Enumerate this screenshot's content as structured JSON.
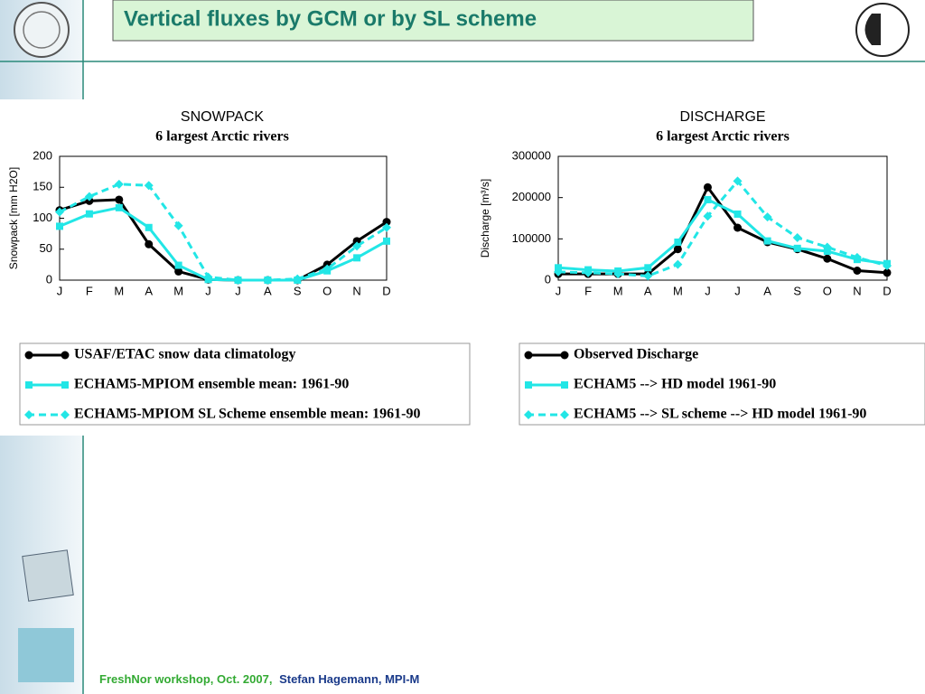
{
  "slide": {
    "title": "Vertical fluxes by GCM or by SL scheme",
    "footer_event": "FreshNor workshop, Oct. 2007,",
    "footer_author": "Stefan Hagemann, MPI-M"
  },
  "chart_data": [
    {
      "type": "line",
      "title": "SNOWPACK",
      "subtitle": "6 largest Arctic rivers",
      "ylabel": "Snowpack [mm H2O]",
      "categories": [
        "J",
        "F",
        "M",
        "A",
        "M",
        "J",
        "J",
        "A",
        "S",
        "O",
        "N",
        "D"
      ],
      "ylim": [
        0,
        200
      ],
      "yticks": [
        0,
        50,
        100,
        150,
        200
      ],
      "series": [
        {
          "name": "USAF/ETAC snow data climatology",
          "color": "#000000",
          "dashed": false,
          "marker": "circle",
          "values": [
            113,
            128,
            130,
            58,
            14,
            1,
            0,
            0,
            0,
            25,
            63,
            94
          ]
        },
        {
          "name": "ECHAM5-MPIOM ensemble mean: 1961-90",
          "color": "#22e6e6",
          "dashed": false,
          "marker": "square",
          "values": [
            87,
            107,
            117,
            85,
            24,
            1,
            0,
            0,
            0,
            15,
            36,
            63
          ]
        },
        {
          "name": "ECHAM5-MPIOM SL Scheme ensemble mean: 1961-90",
          "color": "#22e6e6",
          "dashed": true,
          "marker": "diamond",
          "values": [
            110,
            135,
            155,
            153,
            88,
            5,
            0,
            0,
            2,
            18,
            55,
            85
          ]
        }
      ]
    },
    {
      "type": "line",
      "title": "DISCHARGE",
      "subtitle": "6 largest Arctic rivers",
      "ylabel": "Discharge [m³/s]",
      "categories": [
        "J",
        "F",
        "M",
        "A",
        "M",
        "J",
        "J",
        "A",
        "S",
        "O",
        "N",
        "D"
      ],
      "ylim": [
        0,
        300000
      ],
      "yticks": [
        0,
        100000,
        200000,
        300000
      ],
      "series": [
        {
          "name": "Observed Discharge",
          "color": "#000000",
          "dashed": false,
          "marker": "circle",
          "values": [
            15000,
            15000,
            15000,
            15000,
            75000,
            225000,
            127000,
            92000,
            75000,
            52000,
            23000,
            18000
          ]
        },
        {
          "name": "ECHAM5 --> HD model 1961-90",
          "color": "#22e6e6",
          "dashed": false,
          "marker": "square",
          "values": [
            30000,
            25000,
            22000,
            30000,
            92000,
            195000,
            160000,
            95000,
            77000,
            70000,
            50000,
            40000
          ]
        },
        {
          "name": "ECHAM5 --> SL scheme --> HD model 1961-90",
          "color": "#22e6e6",
          "dashed": true,
          "marker": "diamond",
          "values": [
            20000,
            18000,
            15000,
            10000,
            38000,
            155000,
            240000,
            153000,
            103000,
            80000,
            55000,
            35000
          ]
        }
      ]
    }
  ]
}
